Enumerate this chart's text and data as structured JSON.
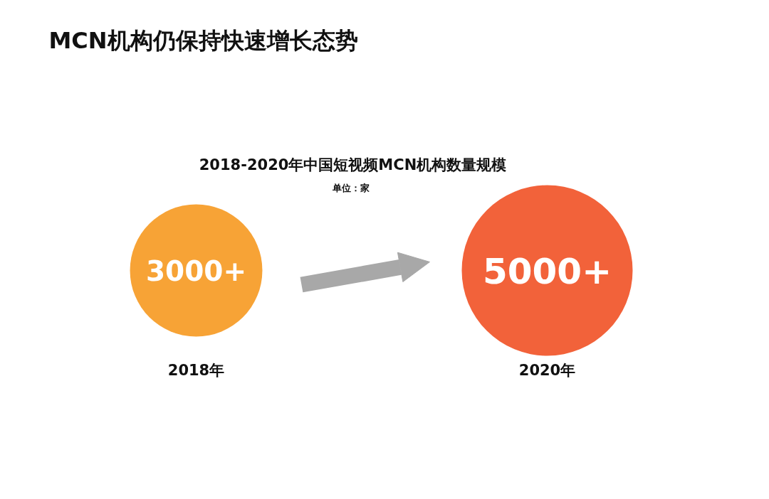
{
  "chart_data": {
    "type": "other",
    "title": "MCN机构仍保持快速增长态势",
    "subtitle": "2018-2020年中国短视频MCN机构数量规模",
    "annotations": [
      "单位：家"
    ],
    "categories": [
      "2018年",
      "2020年"
    ],
    "values": [
      3000,
      5000
    ],
    "value_labels": [
      "3000+",
      "5000+"
    ],
    "colors": [
      "#f7a336",
      "#f2623a"
    ]
  }
}
